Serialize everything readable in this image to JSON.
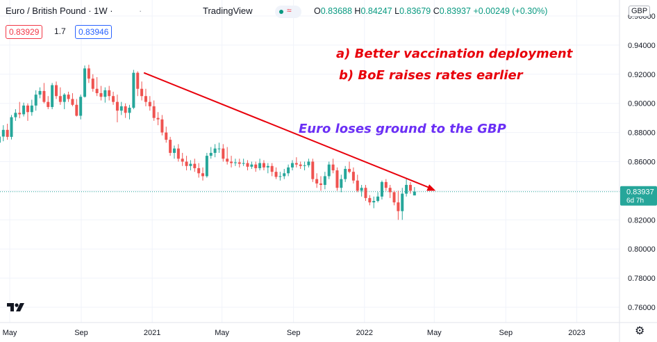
{
  "header": {
    "title": "Euro / British Pound · 1W · ",
    "brand": "TradingView",
    "ohlc": {
      "o_label": "O",
      "o": "0.83688",
      "h_label": "H",
      "h": "0.84247",
      "l_label": "L",
      "l": "0.83679",
      "c_label": "C",
      "c": "0.83937",
      "change": "+0.00249 (+0.30%)"
    },
    "sell_price": "0.83929",
    "spread": "1.7",
    "buy_price": "0.83946",
    "currency": "GBP",
    "status_icon": "live-status-icon"
  },
  "annotations": {
    "line1": "a) Better vaccination deployment",
    "line2": "b) BoE raises rates earlier",
    "line3": "Euro loses ground to the GBP",
    "color_red": "#e8000b",
    "color_blue": "#6b2ff5"
  },
  "price_label": {
    "value": "0.83937",
    "countdown": "6d 7h"
  },
  "colors": {
    "up": "#26a69a",
    "down": "#ef5350",
    "grid": "#f0f3fa",
    "trend_arrow": "#e8000b",
    "price_line": "#26a69a"
  },
  "chart_data": {
    "type": "candlestick",
    "symbol": "Euro / British Pound",
    "interval": "1W",
    "y_ticks": [
      "0.76000",
      "0.78000",
      "0.80000",
      "0.82000",
      "0.84000",
      "0.86000",
      "0.88000",
      "0.90000",
      "0.92000",
      "0.94000",
      "0.96000"
    ],
    "x_ticks": [
      "May",
      "Sep",
      "2021",
      "May",
      "Sep",
      "2022",
      "May",
      "Sep",
      "2023"
    ],
    "ylim": [
      0.75,
      0.96
    ],
    "last_close": 0.83937,
    "trend_arrow": {
      "from": [
        "2020-12-01",
        0.921
      ],
      "to": [
        "2022-05-01",
        0.84
      ]
    },
    "candles": [
      [
        "2020-04-06",
        0.8745,
        0.879,
        0.87,
        0.873
      ],
      [
        "2020-04-13",
        0.873,
        0.88,
        0.8712,
        0.8772
      ],
      [
        "2020-04-20",
        0.8772,
        0.885,
        0.874,
        0.8818
      ],
      [
        "2020-04-27",
        0.8818,
        0.886,
        0.875,
        0.877
      ],
      [
        "2020-05-04",
        0.877,
        0.892,
        0.8752,
        0.8905
      ],
      [
        "2020-05-11",
        0.8905,
        0.896,
        0.888,
        0.8935
      ],
      [
        "2020-05-18",
        0.8935,
        0.901,
        0.8898,
        0.8925
      ],
      [
        "2020-05-25",
        0.8925,
        0.9005,
        0.891,
        0.8985
      ],
      [
        "2020-06-01",
        0.8985,
        0.9,
        0.888,
        0.894
      ],
      [
        "2020-06-08",
        0.894,
        0.9025,
        0.8915,
        0.8985
      ],
      [
        "2020-06-15",
        0.8985,
        0.909,
        0.895,
        0.906
      ],
      [
        "2020-06-22",
        0.906,
        0.911,
        0.9035,
        0.9085
      ],
      [
        "2020-06-29",
        0.9085,
        0.914,
        0.9,
        0.901
      ],
      [
        "2020-07-06",
        0.901,
        0.905,
        0.896,
        0.8975
      ],
      [
        "2020-07-13",
        0.8975,
        0.914,
        0.896,
        0.9125
      ],
      [
        "2020-07-20",
        0.9125,
        0.915,
        0.903,
        0.905
      ],
      [
        "2020-07-27",
        0.905,
        0.911,
        0.899,
        0.901
      ],
      [
        "2020-08-03",
        0.901,
        0.907,
        0.896,
        0.906
      ],
      [
        "2020-08-10",
        0.906,
        0.908,
        0.901,
        0.903
      ],
      [
        "2020-08-17",
        0.903,
        0.907,
        0.898,
        0.899
      ],
      [
        "2020-08-24",
        0.899,
        0.903,
        0.891,
        0.8915
      ],
      [
        "2020-08-31",
        0.8915,
        0.906,
        0.889,
        0.9045
      ],
      [
        "2020-09-07",
        0.9045,
        0.926,
        0.904,
        0.924
      ],
      [
        "2020-09-14",
        0.924,
        0.9265,
        0.914,
        0.917
      ],
      [
        "2020-09-21",
        0.917,
        0.92,
        0.908,
        0.91
      ],
      [
        "2020-09-28",
        0.91,
        0.918,
        0.905,
        0.907
      ],
      [
        "2020-10-05",
        0.907,
        0.912,
        0.902,
        0.9045
      ],
      [
        "2020-10-12",
        0.9045,
        0.911,
        0.9005,
        0.909
      ],
      [
        "2020-10-19",
        0.909,
        0.912,
        0.902,
        0.905
      ],
      [
        "2020-10-26",
        0.905,
        0.908,
        0.899,
        0.901
      ],
      [
        "2020-11-02",
        0.901,
        0.906,
        0.887,
        0.895
      ],
      [
        "2020-11-09",
        0.895,
        0.901,
        0.892,
        0.898
      ],
      [
        "2020-11-16",
        0.898,
        0.9,
        0.89,
        0.8935
      ],
      [
        "2020-11-23",
        0.8935,
        0.899,
        0.889,
        0.897
      ],
      [
        "2020-11-30",
        0.897,
        0.923,
        0.896,
        0.921
      ],
      [
        "2020-12-07",
        0.921,
        0.922,
        0.905,
        0.91
      ],
      [
        "2020-12-14",
        0.91,
        0.915,
        0.902,
        0.905
      ],
      [
        "2020-12-21",
        0.905,
        0.91,
        0.898,
        0.901
      ],
      [
        "2020-12-28",
        0.901,
        0.905,
        0.895,
        0.898
      ],
      [
        "2021-01-04",
        0.898,
        0.902,
        0.888,
        0.89
      ],
      [
        "2021-01-11",
        0.89,
        0.894,
        0.885,
        0.889
      ],
      [
        "2021-01-18",
        0.889,
        0.892,
        0.878,
        0.88
      ],
      [
        "2021-01-25",
        0.88,
        0.884,
        0.873,
        0.875
      ],
      [
        "2021-02-01",
        0.875,
        0.877,
        0.864,
        0.866
      ],
      [
        "2021-02-08",
        0.866,
        0.871,
        0.862,
        0.869
      ],
      [
        "2021-02-15",
        0.869,
        0.872,
        0.86,
        0.862
      ],
      [
        "2021-02-22",
        0.862,
        0.866,
        0.857,
        0.86
      ],
      [
        "2021-03-01",
        0.86,
        0.864,
        0.854,
        0.857
      ],
      [
        "2021-03-08",
        0.857,
        0.861,
        0.854,
        0.8585
      ],
      [
        "2021-03-15",
        0.8585,
        0.862,
        0.853,
        0.8555
      ],
      [
        "2021-03-22",
        0.8555,
        0.859,
        0.849,
        0.852
      ],
      [
        "2021-03-29",
        0.852,
        0.856,
        0.847,
        0.85
      ],
      [
        "2021-04-05",
        0.85,
        0.866,
        0.849,
        0.864
      ],
      [
        "2021-04-12",
        0.864,
        0.87,
        0.862,
        0.866
      ],
      [
        "2021-04-19",
        0.866,
        0.872,
        0.863,
        0.869
      ],
      [
        "2021-04-26",
        0.869,
        0.873,
        0.866,
        0.869
      ],
      [
        "2021-05-03",
        0.869,
        0.872,
        0.86,
        0.862
      ],
      [
        "2021-05-10",
        0.862,
        0.87,
        0.858,
        0.86
      ],
      [
        "2021-05-17",
        0.86,
        0.864,
        0.856,
        0.859
      ],
      [
        "2021-05-24",
        0.859,
        0.862,
        0.857,
        0.8595
      ],
      [
        "2021-05-31",
        0.8595,
        0.862,
        0.856,
        0.8585
      ],
      [
        "2021-06-07",
        0.8585,
        0.862,
        0.857,
        0.859
      ],
      [
        "2021-06-14",
        0.859,
        0.861,
        0.854,
        0.8565
      ],
      [
        "2021-06-21",
        0.8565,
        0.86,
        0.855,
        0.858
      ],
      [
        "2021-06-28",
        0.858,
        0.86,
        0.853,
        0.8555
      ],
      [
        "2021-07-05",
        0.8555,
        0.862,
        0.854,
        0.859
      ],
      [
        "2021-07-12",
        0.859,
        0.861,
        0.854,
        0.856
      ],
      [
        "2021-07-19",
        0.856,
        0.859,
        0.852,
        0.857
      ],
      [
        "2021-07-26",
        0.857,
        0.859,
        0.85,
        0.853
      ],
      [
        "2021-08-02",
        0.853,
        0.856,
        0.848,
        0.8495
      ],
      [
        "2021-08-09",
        0.8495,
        0.853,
        0.847,
        0.85
      ],
      [
        "2021-08-16",
        0.85,
        0.855,
        0.848,
        0.852
      ],
      [
        "2021-08-23",
        0.852,
        0.858,
        0.85,
        0.856
      ],
      [
        "2021-08-30",
        0.856,
        0.861,
        0.854,
        0.859
      ],
      [
        "2021-09-06",
        0.859,
        0.863,
        0.856,
        0.858
      ],
      [
        "2021-09-13",
        0.858,
        0.86,
        0.855,
        0.857
      ],
      [
        "2021-09-20",
        0.857,
        0.86,
        0.854,
        0.8575
      ],
      [
        "2021-09-27",
        0.8575,
        0.862,
        0.856,
        0.86
      ],
      [
        "2021-10-04",
        0.86,
        0.862,
        0.846,
        0.848
      ],
      [
        "2021-10-11",
        0.848,
        0.852,
        0.842,
        0.845
      ],
      [
        "2021-10-18",
        0.845,
        0.85,
        0.84,
        0.844
      ],
      [
        "2021-10-25",
        0.844,
        0.853,
        0.841,
        0.85
      ],
      [
        "2021-11-01",
        0.85,
        0.86,
        0.848,
        0.858
      ],
      [
        "2021-11-08",
        0.858,
        0.862,
        0.852,
        0.854
      ],
      [
        "2021-11-15",
        0.854,
        0.856,
        0.84,
        0.842
      ],
      [
        "2021-11-22",
        0.842,
        0.851,
        0.839,
        0.848
      ],
      [
        "2021-11-29",
        0.848,
        0.857,
        0.846,
        0.855
      ],
      [
        "2021-12-06",
        0.855,
        0.86,
        0.852,
        0.853
      ],
      [
        "2021-12-13",
        0.853,
        0.856,
        0.845,
        0.847
      ],
      [
        "2021-12-20",
        0.847,
        0.851,
        0.839,
        0.84
      ],
      [
        "2021-12-27",
        0.84,
        0.844,
        0.836,
        0.842
      ],
      [
        "2022-01-03",
        0.842,
        0.844,
        0.833,
        0.835
      ],
      [
        "2022-01-10",
        0.835,
        0.837,
        0.83,
        0.832
      ],
      [
        "2022-01-17",
        0.832,
        0.836,
        0.828,
        0.833
      ],
      [
        "2022-01-24",
        0.833,
        0.839,
        0.832,
        0.836
      ],
      [
        "2022-01-31",
        0.836,
        0.847,
        0.834,
        0.846
      ],
      [
        "2022-02-07",
        0.846,
        0.848,
        0.84,
        0.842
      ],
      [
        "2022-02-14",
        0.842,
        0.844,
        0.835,
        0.839
      ],
      [
        "2022-02-21",
        0.839,
        0.84,
        0.83,
        0.832
      ],
      [
        "2022-02-28",
        0.832,
        0.84,
        0.82,
        0.826
      ],
      [
        "2022-03-07",
        0.826,
        0.842,
        0.82,
        0.838
      ],
      [
        "2022-03-14",
        0.838,
        0.848,
        0.836,
        0.844
      ],
      [
        "2022-03-21",
        0.844,
        0.846,
        0.838,
        0.84
      ],
      [
        "2022-03-28",
        0.8368,
        0.8425,
        0.8368,
        0.8394
      ]
    ]
  }
}
